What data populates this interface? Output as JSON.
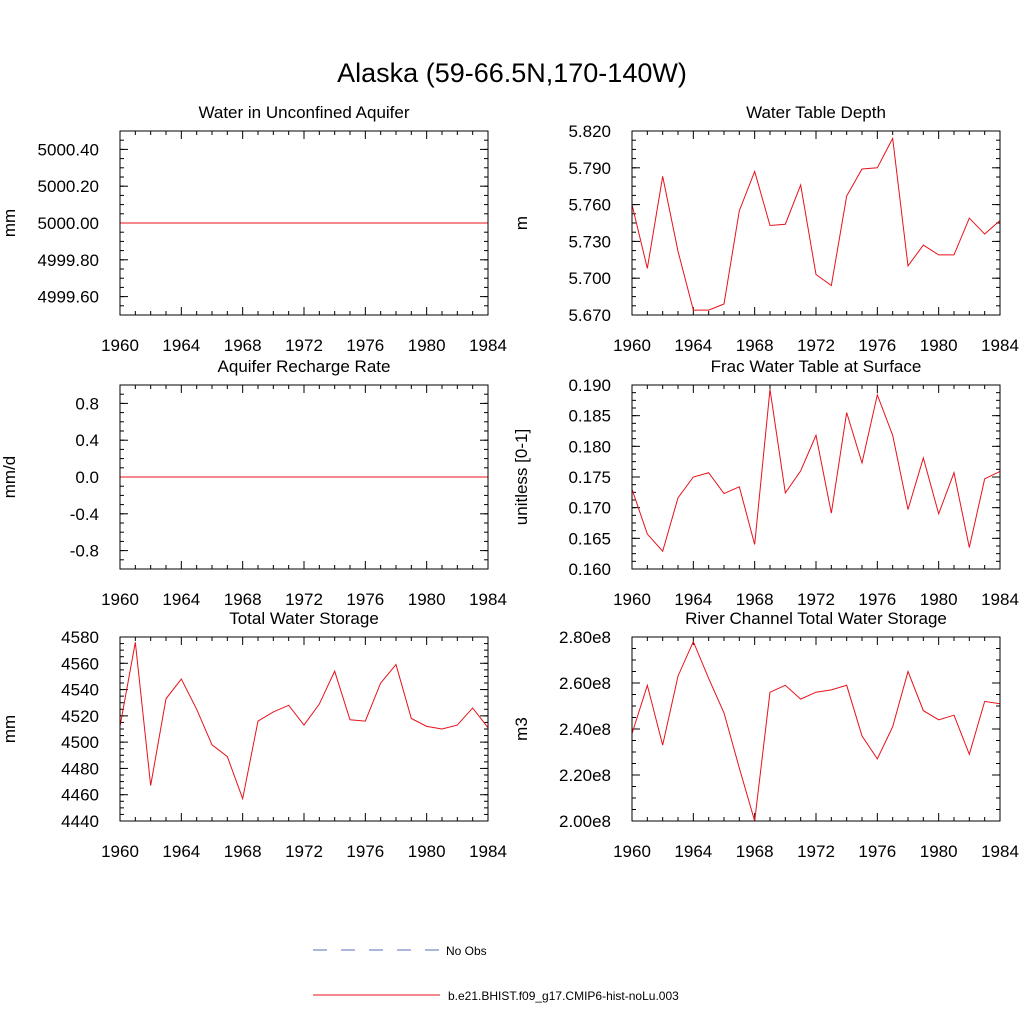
{
  "figure": {
    "title": "Alaska (59-66.5N,170-140W)"
  },
  "chart_data": [
    {
      "type": "line",
      "title": "Water in Unconfined Aquifer",
      "xlabel": "",
      "ylabel": "mm",
      "xlim": [
        1960,
        1984
      ],
      "ylim": [
        4999.5,
        5000.5
      ],
      "xticks": [
        "1960",
        "1964",
        "1968",
        "1972",
        "1976",
        "1980",
        "1984"
      ],
      "yticks": [
        "4999.60",
        "4999.80",
        "5000.00",
        "5000.20",
        "5000.40"
      ],
      "yticks_values": [
        4999.6,
        4999.8,
        5000.0,
        5000.2,
        5000.4
      ],
      "x": [
        1960,
        1961,
        1962,
        1963,
        1964,
        1965,
        1966,
        1967,
        1968,
        1969,
        1970,
        1971,
        1972,
        1973,
        1974,
        1975,
        1976,
        1977,
        1978,
        1979,
        1980,
        1981,
        1982,
        1983,
        1984
      ],
      "series": [
        {
          "values": [
            5000,
            5000,
            5000,
            5000,
            5000,
            5000,
            5000,
            5000,
            5000,
            5000,
            5000,
            5000,
            5000,
            5000,
            5000,
            5000,
            5000,
            5000,
            5000,
            5000,
            5000,
            5000,
            5000,
            5000,
            5000
          ]
        }
      ]
    },
    {
      "type": "line",
      "title": "Water Table Depth",
      "xlabel": "",
      "ylabel": "m",
      "xlim": [
        1960,
        1984
      ],
      "ylim": [
        5.67,
        5.82
      ],
      "xticks": [
        "1960",
        "1964",
        "1968",
        "1972",
        "1976",
        "1980",
        "1984"
      ],
      "yticks": [
        "5.670",
        "5.700",
        "5.730",
        "5.760",
        "5.790",
        "5.820"
      ],
      "yticks_values": [
        5.67,
        5.7,
        5.73,
        5.76,
        5.79,
        5.82
      ],
      "x": [
        1960,
        1961,
        1962,
        1963,
        1964,
        1965,
        1966,
        1967,
        1968,
        1969,
        1970,
        1971,
        1972,
        1973,
        1974,
        1975,
        1976,
        1977,
        1978,
        1979,
        1980,
        1981,
        1982,
        1983,
        1984
      ],
      "series": [
        {
          "values": [
            5.76,
            5.708,
            5.783,
            5.722,
            5.674,
            5.674,
            5.679,
            5.755,
            5.787,
            5.743,
            5.744,
            5.776,
            5.703,
            5.694,
            5.767,
            5.789,
            5.79,
            5.814,
            5.71,
            5.727,
            5.719,
            5.719,
            5.749,
            5.736,
            5.747
          ]
        }
      ]
    },
    {
      "type": "line",
      "title": "Aquifer Recharge Rate",
      "xlabel": "",
      "ylabel": "mm/d",
      "xlim": [
        1960,
        1984
      ],
      "ylim": [
        -1.0,
        1.0
      ],
      "xticks": [
        "1960",
        "1964",
        "1968",
        "1972",
        "1976",
        "1980",
        "1984"
      ],
      "yticks": [
        "-0.8",
        "-0.4",
        "0.0",
        "0.4",
        "0.8"
      ],
      "yticks_values": [
        -0.8,
        -0.4,
        0.0,
        0.4,
        0.8
      ],
      "x": [
        1960,
        1961,
        1962,
        1963,
        1964,
        1965,
        1966,
        1967,
        1968,
        1969,
        1970,
        1971,
        1972,
        1973,
        1974,
        1975,
        1976,
        1977,
        1978,
        1979,
        1980,
        1981,
        1982,
        1983,
        1984
      ],
      "series": [
        {
          "values": [
            0,
            0,
            0,
            0,
            0,
            0,
            0,
            0,
            0,
            0,
            0,
            0,
            0,
            0,
            0,
            0,
            0,
            0,
            0,
            0,
            0,
            0,
            0,
            0,
            0
          ]
        }
      ]
    },
    {
      "type": "line",
      "title": "Frac Water Table at Surface",
      "xlabel": "",
      "ylabel": "unitless [0-1]",
      "xlim": [
        1960,
        1984
      ],
      "ylim": [
        0.16,
        0.19
      ],
      "xticks": [
        "1960",
        "1964",
        "1968",
        "1972",
        "1976",
        "1980",
        "1984"
      ],
      "yticks": [
        "0.160",
        "0.165",
        "0.170",
        "0.175",
        "0.180",
        "0.185",
        "0.190"
      ],
      "yticks_values": [
        0.16,
        0.165,
        0.17,
        0.175,
        0.18,
        0.185,
        0.19
      ],
      "x": [
        1960,
        1961,
        1962,
        1963,
        1964,
        1965,
        1966,
        1967,
        1968,
        1969,
        1970,
        1971,
        1972,
        1973,
        1974,
        1975,
        1976,
        1977,
        1978,
        1979,
        1980,
        1981,
        1982,
        1983,
        1984
      ],
      "series": [
        {
          "values": [
            0.173,
            0.1657,
            0.1629,
            0.1716,
            0.175,
            0.1757,
            0.1723,
            0.1734,
            0.164,
            0.1893,
            0.1724,
            0.176,
            0.1818,
            0.1691,
            0.1855,
            0.1773,
            0.1884,
            0.1818,
            0.1697,
            0.1781,
            0.169,
            0.1757,
            0.1635,
            0.1747,
            0.1759
          ]
        }
      ]
    },
    {
      "type": "line",
      "title": "Total Water Storage",
      "xlabel": "",
      "ylabel": "mm",
      "xlim": [
        1960,
        1984
      ],
      "ylim": [
        4440,
        4580
      ],
      "xticks": [
        "1960",
        "1964",
        "1968",
        "1972",
        "1976",
        "1980",
        "1984"
      ],
      "yticks": [
        "4440",
        "4460",
        "4480",
        "4500",
        "4520",
        "4540",
        "4560",
        "4580"
      ],
      "yticks_values": [
        4440,
        4460,
        4480,
        4500,
        4520,
        4540,
        4560,
        4580
      ],
      "x": [
        1960,
        1961,
        1962,
        1963,
        1964,
        1965,
        1966,
        1967,
        1968,
        1969,
        1970,
        1971,
        1972,
        1973,
        1974,
        1975,
        1976,
        1977,
        1978,
        1979,
        1980,
        1981,
        1982,
        1983,
        1984
      ],
      "series": [
        {
          "values": [
            4512,
            4576,
            4467,
            4533,
            4548,
            4525,
            4498,
            4489,
            4457,
            4516,
            4523,
            4528,
            4513,
            4529,
            4554,
            4517,
            4516,
            4545,
            4559,
            4518,
            4512,
            4510,
            4513,
            4526,
            4511
          ]
        }
      ]
    },
    {
      "type": "line",
      "title": "River Channel Total Water Storage",
      "xlabel": "",
      "ylabel": "m3",
      "xlim": [
        1960,
        1984
      ],
      "ylim": [
        200000000,
        280000000
      ],
      "xticks": [
        "1960",
        "1964",
        "1968",
        "1972",
        "1976",
        "1980",
        "1984"
      ],
      "yticks": [
        "2.00e8",
        "2.20e8",
        "2.40e8",
        "2.60e8",
        "2.80e8"
      ],
      "yticks_values": [
        200000000,
        220000000,
        240000000,
        260000000,
        280000000
      ],
      "x": [
        1960,
        1961,
        1962,
        1963,
        1964,
        1965,
        1966,
        1967,
        1968,
        1969,
        1970,
        1971,
        1972,
        1973,
        1974,
        1975,
        1976,
        1977,
        1978,
        1979,
        1980,
        1981,
        1982,
        1983,
        1984
      ],
      "series": [
        {
          "values": [
            238000000,
            259000000,
            233000000,
            263000000,
            278000000,
            262000000,
            247000000,
            223000000,
            200000000,
            256000000,
            259000000,
            253000000,
            256000000,
            257000000,
            259000000,
            237000000,
            227000000,
            241000000,
            265000000,
            248000000,
            244000000,
            246000000,
            229000000,
            252000000,
            251000000
          ]
        }
      ]
    }
  ],
  "legend": {
    "items": [
      {
        "label": "No Obs",
        "color": "#5b6fb5",
        "style": "dashed"
      },
      {
        "label": "b.e21.BHIST.f09_g17.CMIP6-hist-noLu.003",
        "color": "#e8111b",
        "style": "solid"
      }
    ]
  },
  "colors": {
    "line": "#e8111b",
    "axis": "#000000"
  }
}
